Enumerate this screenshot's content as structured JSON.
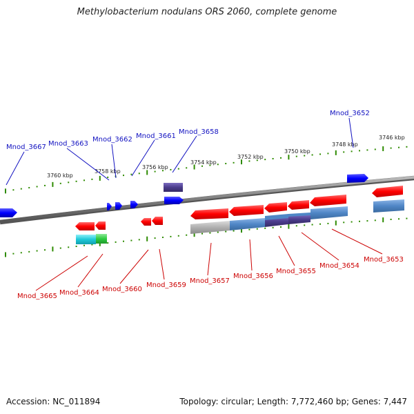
{
  "title": "Methylobacterium nodulans ORS 2060, complete genome",
  "footer": {
    "accession": "Accession: NC_011894",
    "summary": "Topology: circular; Length: 7,772,460 bp; Genes: 7,447"
  },
  "scale_labels": [
    "3760 kbp",
    "3758 kbp",
    "3756 kbp",
    "3754 kbp",
    "3752 kbp",
    "3750 kbp",
    "3748 kbp",
    "3746 kbp"
  ],
  "forward_genes": [
    "Mnod_3667",
    "Mnod_3663",
    "Mnod_3662",
    "Mnod_3661",
    "Mnod_3658",
    "Mnod_3652"
  ],
  "reverse_genes": [
    "Mnod_3665",
    "Mnod_3664",
    "Mnod_3660",
    "Mnod_3659",
    "Mnod_3657",
    "Mnod_3656",
    "Mnod_3655",
    "Mnod_3654",
    "Mnod_3653"
  ],
  "colors": {
    "forward_gene": "#0000ff",
    "reverse_gene": "#ff0000",
    "forward_label": "#1010c0",
    "reverse_label": "#cc0000",
    "backbone": "#7f7f7f",
    "tick": "#2e8b00",
    "domain_steelblue": "#4f86c6",
    "domain_purple": "#4b3c8c",
    "domain_cyan": "#1ec8d8",
    "domain_green": "#2ecc40",
    "domain_gray": "#b0b0b0"
  }
}
